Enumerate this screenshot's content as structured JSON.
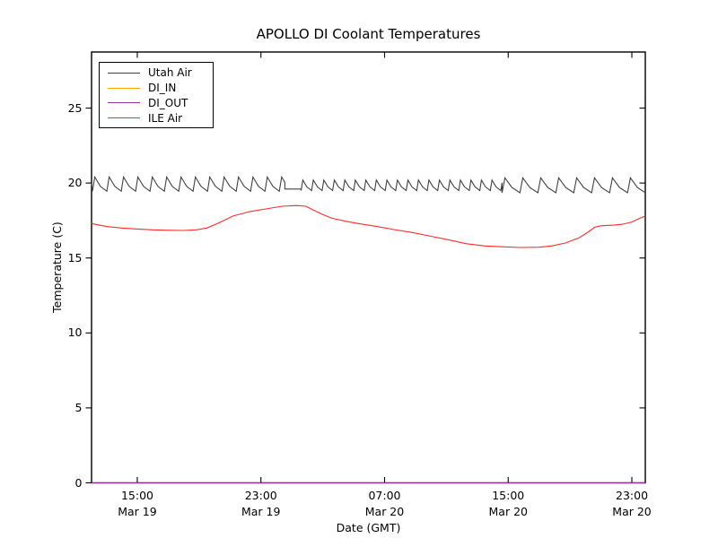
{
  "chart_data": {
    "type": "line",
    "title": "APOLLO DI Coolant Temperatures",
    "xlabel": "Date (GMT)",
    "ylabel": "Temperature (C)",
    "legend_position": "upper left",
    "grid": false,
    "x_unit_hours_since": "Mar 19 00:00 GMT",
    "xlim": [
      12.04,
      47.87
    ],
    "ylim": [
      0,
      28.74
    ],
    "y_ticks": [
      0,
      5,
      10,
      15,
      20,
      25
    ],
    "x_ticks": [
      {
        "hour": 15,
        "time": "15:00",
        "date": "Mar 19"
      },
      {
        "hour": 23,
        "time": "23:00",
        "date": "Mar 19"
      },
      {
        "hour": 31,
        "time": "07:00",
        "date": "Mar 20"
      },
      {
        "hour": 39,
        "time": "15:00",
        "date": "Mar 20"
      },
      {
        "hour": 47,
        "time": "23:00",
        "date": "Mar 20"
      }
    ],
    "series": [
      {
        "name": "Utah Air",
        "color": "#404040",
        "style": "sawtooth",
        "description": "HVAC-cycle sawtooth oscillating ~19.4-20.4 C",
        "start_point": [
          12.04,
          20.0
        ],
        "sawtooth_segments": [
          {
            "h0": 12.1,
            "h1": 24.55,
            "period": 0.93,
            "lo": 19.45,
            "hi": 20.4
          },
          {
            "h0": 24.55,
            "h1": 25.6,
            "flat": 19.6
          },
          {
            "h0": 25.6,
            "h1": 38.6,
            "period": 0.68,
            "lo": 19.5,
            "hi": 20.2
          },
          {
            "h0": 38.6,
            "h1": 47.87,
            "period": 1.16,
            "lo": 19.35,
            "hi": 20.35
          }
        ]
      },
      {
        "name": "DI_IN",
        "color": "#ffa500",
        "style": "line",
        "points": [
          [
            12.04,
            0
          ],
          [
            47.87,
            0
          ]
        ]
      },
      {
        "name": "DI_OUT",
        "color": "#993399",
        "style": "line",
        "points": [
          [
            12.04,
            0
          ],
          [
            47.87,
            0
          ]
        ]
      },
      {
        "name": "ILE Air",
        "color": "#ff2b2b",
        "style": "line",
        "points": [
          [
            12.04,
            17.3
          ],
          [
            13.0,
            17.1
          ],
          [
            14.0,
            17.0
          ],
          [
            15.0,
            16.93
          ],
          [
            16.0,
            16.88
          ],
          [
            17.0,
            16.85
          ],
          [
            18.0,
            16.84
          ],
          [
            18.8,
            16.88
          ],
          [
            19.5,
            17.0
          ],
          [
            20.3,
            17.35
          ],
          [
            21.2,
            17.8
          ],
          [
            22.3,
            18.1
          ],
          [
            23.5,
            18.3
          ],
          [
            24.4,
            18.45
          ],
          [
            25.3,
            18.5
          ],
          [
            25.9,
            18.45
          ],
          [
            26.4,
            18.2
          ],
          [
            27.0,
            17.9
          ],
          [
            27.6,
            17.65
          ],
          [
            28.5,
            17.45
          ],
          [
            29.3,
            17.3
          ],
          [
            30.5,
            17.1
          ],
          [
            31.6,
            16.9
          ],
          [
            32.8,
            16.7
          ],
          [
            34.0,
            16.45
          ],
          [
            35.2,
            16.2
          ],
          [
            36.3,
            15.95
          ],
          [
            37.5,
            15.8
          ],
          [
            38.6,
            15.75
          ],
          [
            39.8,
            15.7
          ],
          [
            41.0,
            15.72
          ],
          [
            41.8,
            15.8
          ],
          [
            42.7,
            16.0
          ],
          [
            43.6,
            16.35
          ],
          [
            44.2,
            16.75
          ],
          [
            44.6,
            17.05
          ],
          [
            45.0,
            17.15
          ],
          [
            45.9,
            17.2
          ],
          [
            46.4,
            17.25
          ],
          [
            47.0,
            17.4
          ],
          [
            47.4,
            17.6
          ],
          [
            47.87,
            17.8
          ]
        ]
      }
    ]
  }
}
